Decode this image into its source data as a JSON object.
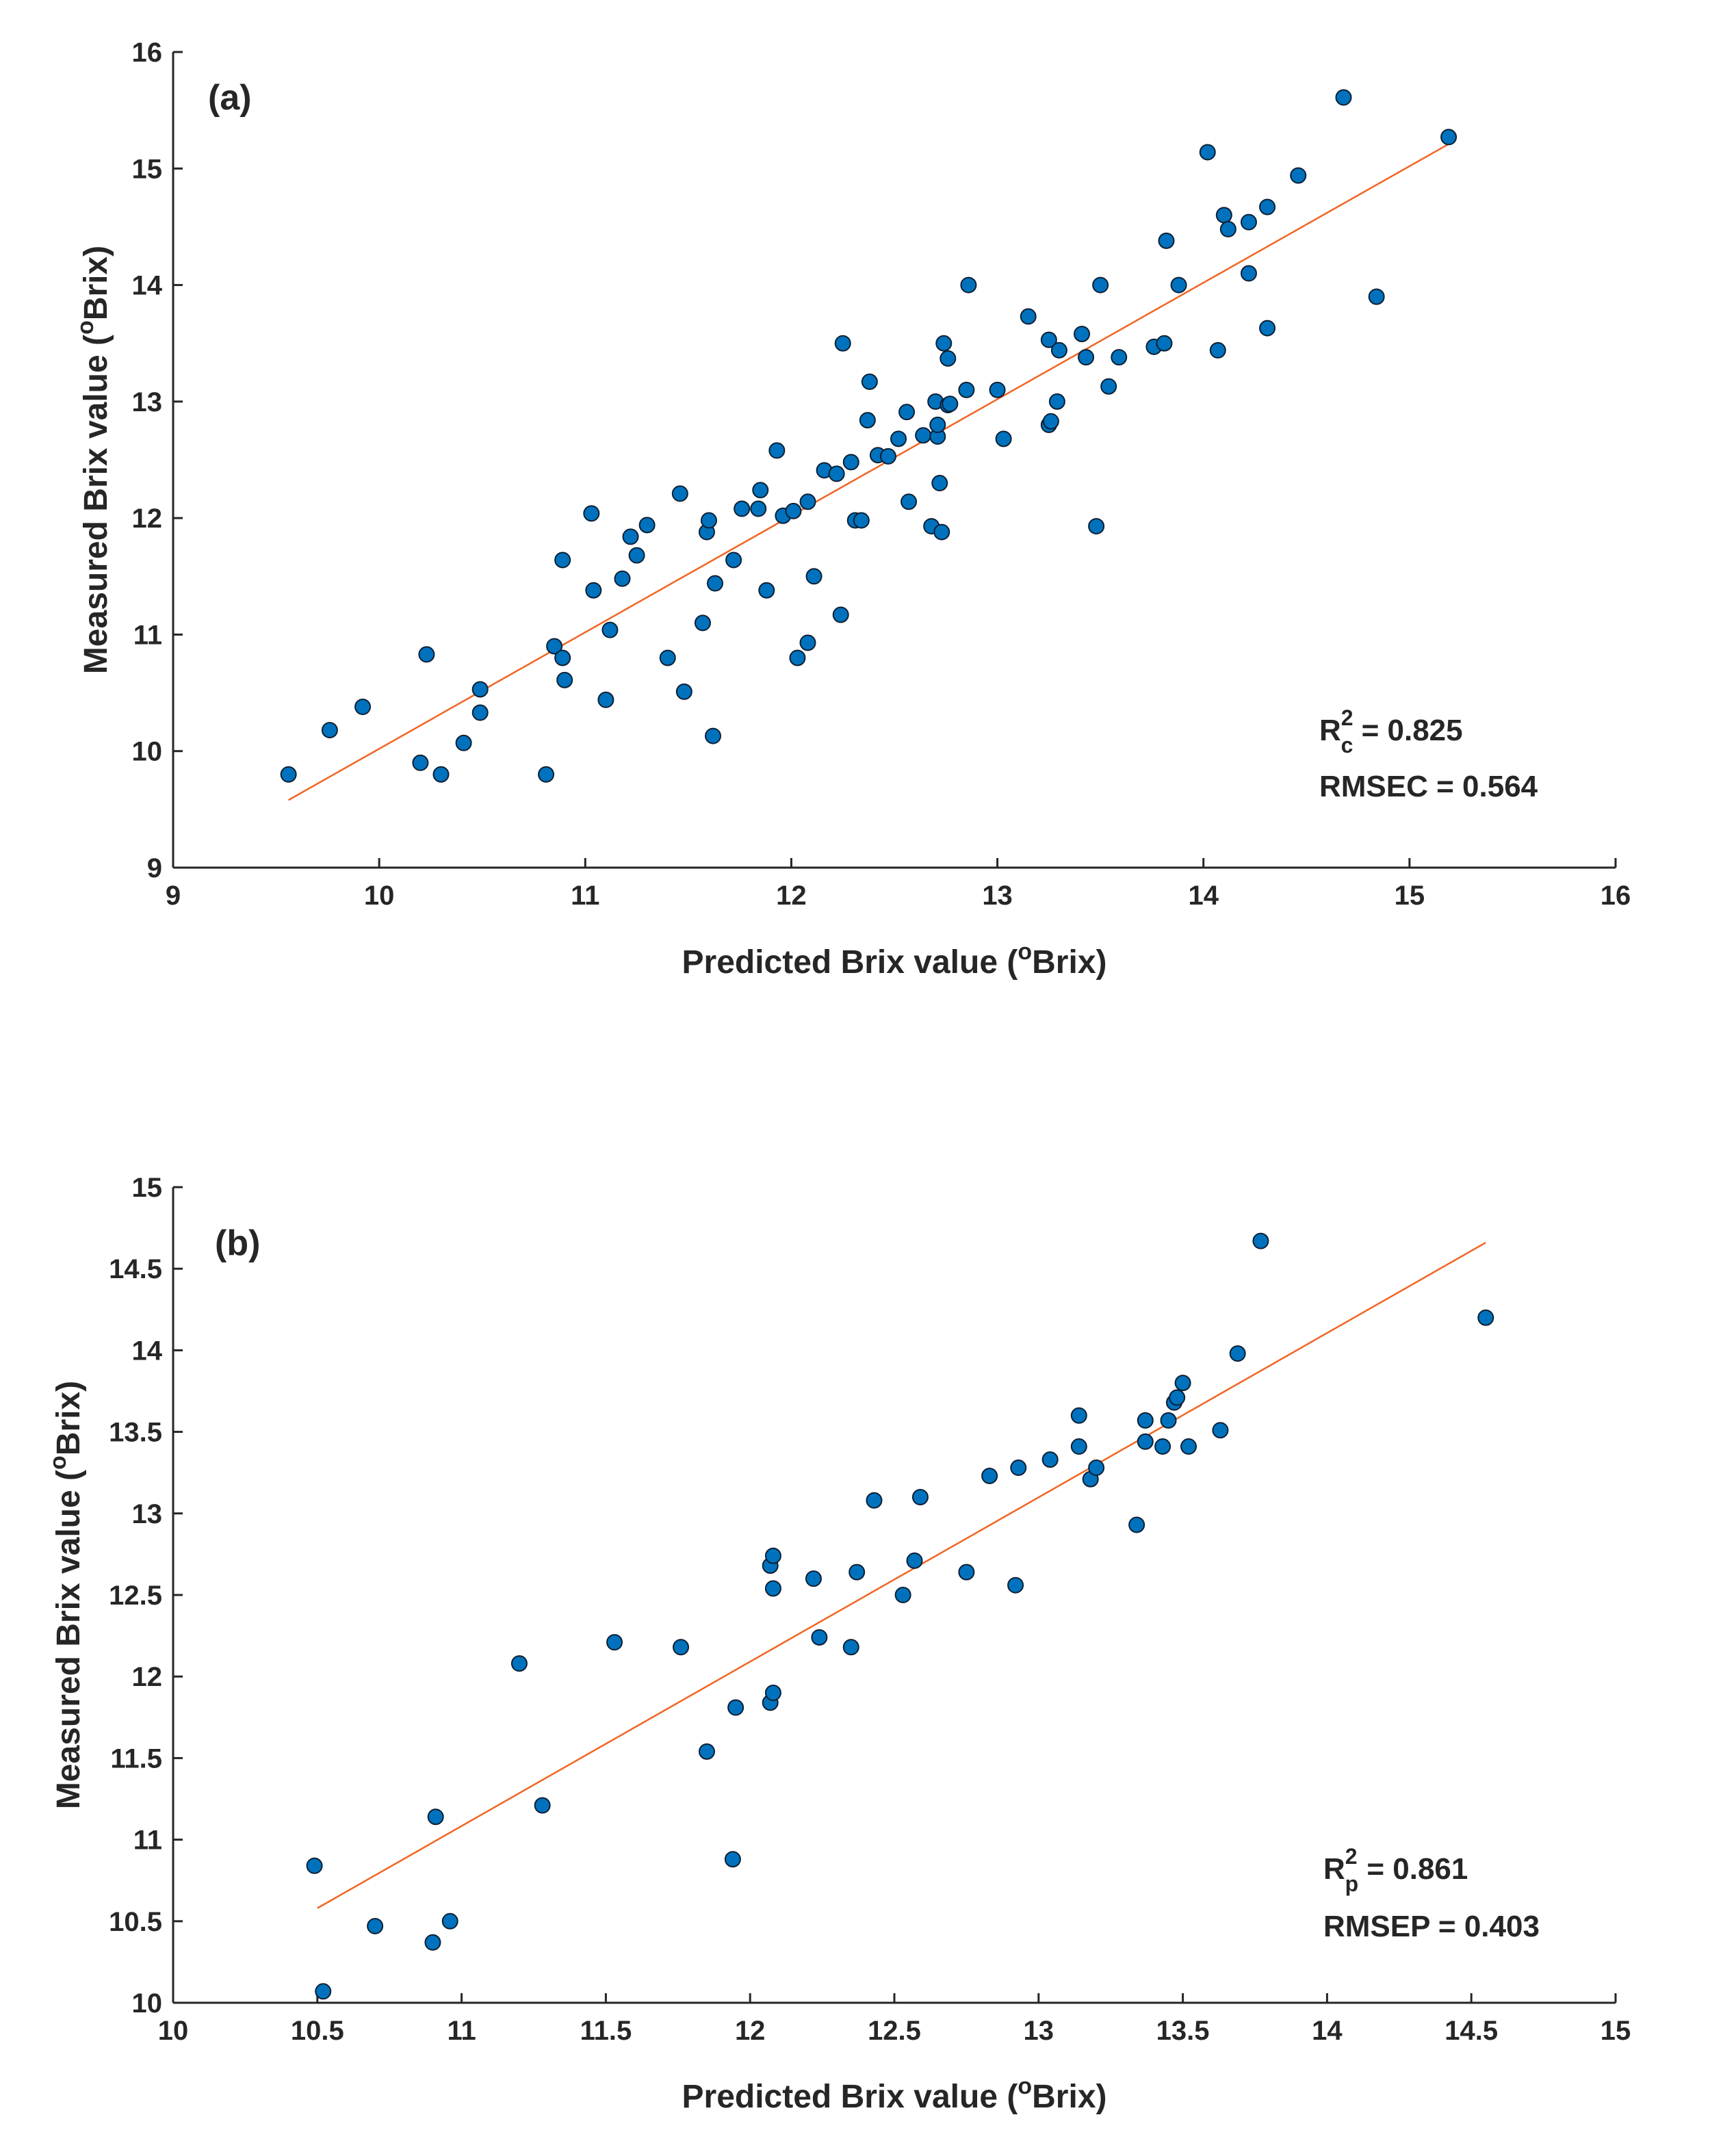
{
  "chart_data": [
    {
      "type": "scatter",
      "panel_label": "(a)",
      "xlabel": "Predicted Brix value (",
      "ylabel": "Measured Brix value (",
      "unit_sup": "o",
      "unit_text": "Brix)",
      "xlim": [
        9,
        16
      ],
      "ylim": [
        9,
        16
      ],
      "xticks": [
        "9",
        "10",
        "11",
        "12",
        "13",
        "14",
        "15",
        "16"
      ],
      "yticks": [
        "9",
        "10",
        "11",
        "12",
        "13",
        "14",
        "15",
        "16"
      ],
      "fit_line": {
        "x": [
          9.56,
          15.19
        ],
        "y": [
          9.58,
          15.21
        ]
      },
      "stats": {
        "r2_prefix": "R",
        "r2_sup": "2",
        "r2_sub": "c",
        "r2_value": " = 0.825",
        "rmse_text": "RMSEC = 0.564"
      },
      "points": [
        [
          9.56,
          9.8
        ],
        [
          9.76,
          10.18
        ],
        [
          9.92,
          10.38
        ],
        [
          10.2,
          9.9
        ],
        [
          10.23,
          10.83
        ],
        [
          10.3,
          9.8
        ],
        [
          10.41,
          10.07
        ],
        [
          10.49,
          10.33
        ],
        [
          10.49,
          10.53
        ],
        [
          10.81,
          9.8
        ],
        [
          10.85,
          10.9
        ],
        [
          10.89,
          10.8
        ],
        [
          10.9,
          10.61
        ],
        [
          10.89,
          11.64
        ],
        [
          11.03,
          12.04
        ],
        [
          11.04,
          11.38
        ],
        [
          11.1,
          10.44
        ],
        [
          11.12,
          11.04
        ],
        [
          11.18,
          11.48
        ],
        [
          11.22,
          11.84
        ],
        [
          11.25,
          11.68
        ],
        [
          11.3,
          11.94
        ],
        [
          11.4,
          10.8
        ],
        [
          11.46,
          12.21
        ],
        [
          11.48,
          10.51
        ],
        [
          11.57,
          11.1
        ],
        [
          11.59,
          11.88
        ],
        [
          11.6,
          11.98
        ],
        [
          11.62,
          10.13
        ],
        [
          11.63,
          11.44
        ],
        [
          11.72,
          11.64
        ],
        [
          11.76,
          12.08
        ],
        [
          11.84,
          12.08
        ],
        [
          11.85,
          12.24
        ],
        [
          11.88,
          11.38
        ],
        [
          11.93,
          12.58
        ],
        [
          11.96,
          12.02
        ],
        [
          12.01,
          12.06
        ],
        [
          12.03,
          10.8
        ],
        [
          12.08,
          12.14
        ],
        [
          12.08,
          10.93
        ],
        [
          12.11,
          11.5
        ],
        [
          12.16,
          12.41
        ],
        [
          12.22,
          12.38
        ],
        [
          12.24,
          11.17
        ],
        [
          12.25,
          13.5
        ],
        [
          12.29,
          12.48
        ],
        [
          12.31,
          11.98
        ],
        [
          12.34,
          11.98
        ],
        [
          12.37,
          12.84
        ],
        [
          12.38,
          13.17
        ],
        [
          12.42,
          12.54
        ],
        [
          12.47,
          12.53
        ],
        [
          12.52,
          12.68
        ],
        [
          12.56,
          12.91
        ],
        [
          12.57,
          12.14
        ],
        [
          12.64,
          12.71
        ],
        [
          12.68,
          11.93
        ],
        [
          12.7,
          13.0
        ],
        [
          12.71,
          12.7
        ],
        [
          12.71,
          12.8
        ],
        [
          12.72,
          12.3
        ],
        [
          12.73,
          11.88
        ],
        [
          12.74,
          13.5
        ],
        [
          12.76,
          12.97
        ],
        [
          12.77,
          12.98
        ],
        [
          12.76,
          13.37
        ],
        [
          12.85,
          13.1
        ],
        [
          12.86,
          14.0
        ],
        [
          13.0,
          13.1
        ],
        [
          13.03,
          12.68
        ],
        [
          13.15,
          13.73
        ],
        [
          13.25,
          12.8
        ],
        [
          13.25,
          13.53
        ],
        [
          13.26,
          12.83
        ],
        [
          13.29,
          13.0
        ],
        [
          13.3,
          13.44
        ],
        [
          13.41,
          13.58
        ],
        [
          13.43,
          13.38
        ],
        [
          13.48,
          11.93
        ],
        [
          13.5,
          14.0
        ],
        [
          13.54,
          13.13
        ],
        [
          13.59,
          13.38
        ],
        [
          13.76,
          13.47
        ],
        [
          13.81,
          13.5
        ],
        [
          13.82,
          14.38
        ],
        [
          13.88,
          14.0
        ],
        [
          14.02,
          15.14
        ],
        [
          14.07,
          13.44
        ],
        [
          14.1,
          14.6
        ],
        [
          14.12,
          14.48
        ],
        [
          14.22,
          14.54
        ],
        [
          14.22,
          14.1
        ],
        [
          14.31,
          13.63
        ],
        [
          14.31,
          14.67
        ],
        [
          14.46,
          14.94
        ],
        [
          14.68,
          15.61
        ],
        [
          14.84,
          13.9
        ],
        [
          15.19,
          15.27
        ]
      ]
    },
    {
      "type": "scatter",
      "panel_label": "(b)",
      "xlabel": "Predicted Brix value (",
      "ylabel": "Measured Brix value (",
      "unit_sup": "o",
      "unit_text": "Brix)",
      "xlim": [
        10,
        15
      ],
      "ylim": [
        10,
        15
      ],
      "xticks": [
        "10",
        "10.5",
        "11",
        "11.5",
        "12",
        "12.5",
        "13",
        "13.5",
        "14",
        "14.5",
        "15"
      ],
      "yticks": [
        "10",
        "10.5",
        "11",
        "11.5",
        "12",
        "12.5",
        "13",
        "13.5",
        "14",
        "14.5",
        "15"
      ],
      "fit_line": {
        "x": [
          10.5,
          14.55
        ],
        "y": [
          10.58,
          14.66
        ]
      },
      "stats": {
        "r2_prefix": "R",
        "r2_sup": "2",
        "r2_sub": "p",
        "r2_value": " = 0.861",
        "rmse_text": "RMSEP = 0.403"
      },
      "points": [
        [
          10.49,
          10.84
        ],
        [
          10.52,
          10.07
        ],
        [
          10.7,
          10.47
        ],
        [
          10.9,
          10.37
        ],
        [
          10.91,
          11.14
        ],
        [
          10.96,
          10.5
        ],
        [
          11.2,
          12.08
        ],
        [
          11.28,
          11.21
        ],
        [
          11.53,
          12.21
        ],
        [
          11.76,
          12.18
        ],
        [
          11.85,
          11.54
        ],
        [
          11.94,
          10.88
        ],
        [
          11.95,
          11.81
        ],
        [
          12.07,
          11.84
        ],
        [
          12.07,
          12.68
        ],
        [
          12.08,
          12.74
        ],
        [
          12.08,
          11.9
        ],
        [
          12.08,
          12.54
        ],
        [
          12.22,
          12.6
        ],
        [
          12.24,
          12.24
        ],
        [
          12.35,
          12.18
        ],
        [
          12.37,
          12.64
        ],
        [
          12.43,
          13.08
        ],
        [
          12.53,
          12.5
        ],
        [
          12.57,
          12.71
        ],
        [
          12.59,
          13.1
        ],
        [
          12.75,
          12.64
        ],
        [
          12.83,
          13.23
        ],
        [
          12.92,
          12.56
        ],
        [
          12.93,
          13.28
        ],
        [
          13.04,
          13.33
        ],
        [
          13.14,
          13.6
        ],
        [
          13.14,
          13.41
        ],
        [
          13.18,
          13.21
        ],
        [
          13.2,
          13.28
        ],
        [
          13.34,
          12.93
        ],
        [
          13.37,
          13.57
        ],
        [
          13.37,
          13.44
        ],
        [
          13.43,
          13.41
        ],
        [
          13.45,
          13.57
        ],
        [
          13.47,
          13.68
        ],
        [
          13.48,
          13.71
        ],
        [
          13.5,
          13.8
        ],
        [
          13.52,
          13.41
        ],
        [
          13.63,
          13.51
        ],
        [
          13.69,
          13.98
        ],
        [
          13.77,
          14.67
        ],
        [
          14.55,
          14.2
        ]
      ]
    }
  ]
}
